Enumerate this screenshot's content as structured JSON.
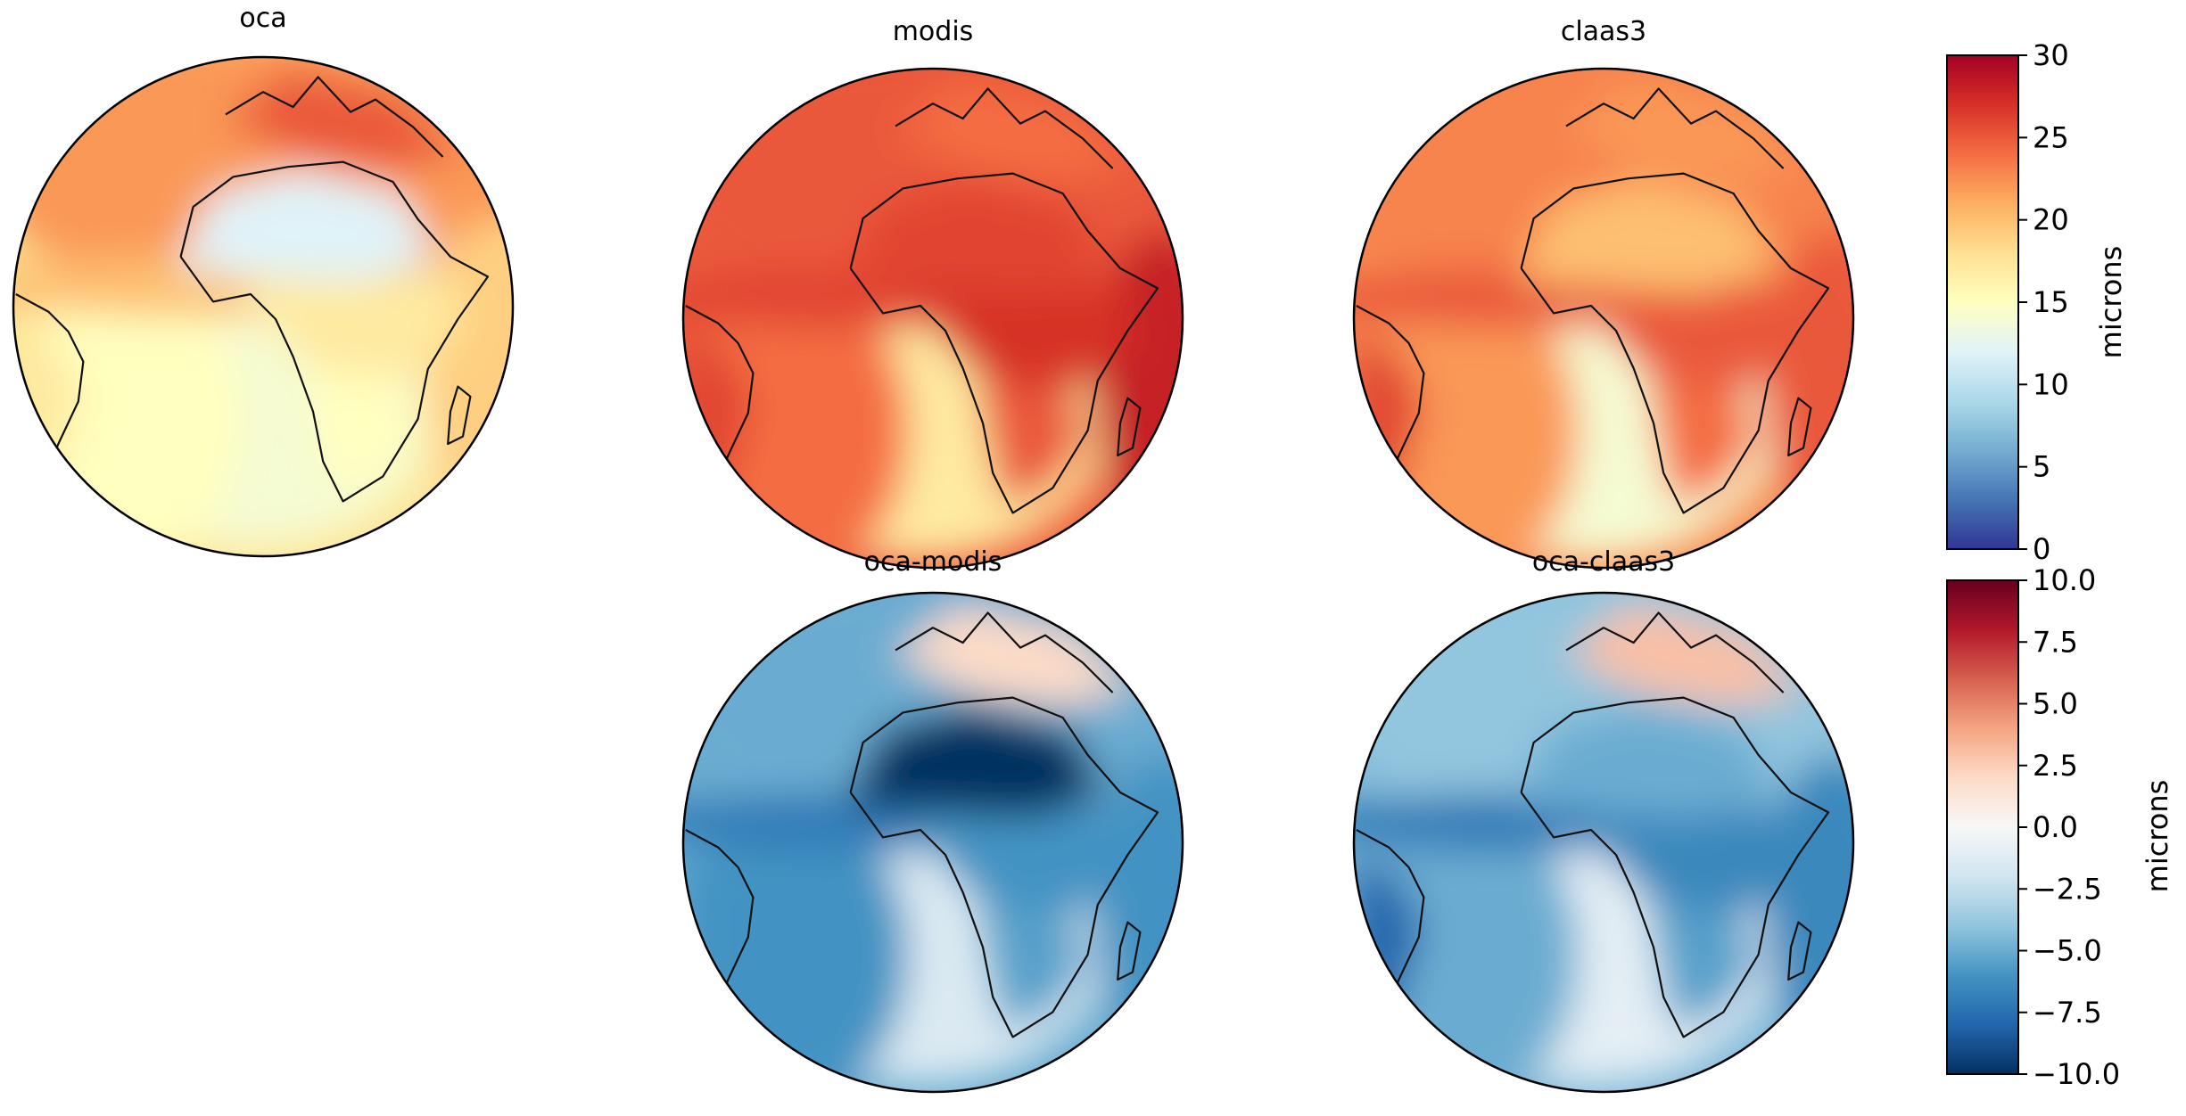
{
  "chart_data": [
    {
      "type": "map",
      "title": "oca",
      "projection": "orthographic",
      "colormap": "RdYlBu_r",
      "colorbar": "microns-abs",
      "regions": {
        "ocean_north": 22,
        "ocean_equatorial_band": 20,
        "ocean_south_atlantic": 14,
        "ocean_southwest": 15,
        "sahara": 12,
        "central_africa": 17,
        "southern_africa": 15,
        "mediterranean_europe": 25,
        "east_indian_ocean": 19,
        "south_america": 17
      }
    },
    {
      "type": "map",
      "title": "modis",
      "projection": "orthographic",
      "colormap": "RdYlBu_r",
      "colorbar": "microns-abs",
      "regions": {
        "ocean_north": 25,
        "ocean_equatorial_band": 26,
        "ocean_south_atlantic": 17,
        "ocean_southwest": 24,
        "sahara": 26,
        "central_africa": 27,
        "southern_africa": 25,
        "mediterranean_europe": 24,
        "east_indian_ocean": 28,
        "south_america": 26
      }
    },
    {
      "type": "map",
      "title": "claas3",
      "projection": "orthographic",
      "colormap": "RdYlBu_r",
      "colorbar": "microns-abs",
      "regions": {
        "ocean_north": 23,
        "ocean_equatorial_band": 25,
        "ocean_south_atlantic": 14,
        "ocean_southwest": 22,
        "sahara": 20,
        "central_africa": 25,
        "southern_africa": 24,
        "mediterranean_europe": 22,
        "east_indian_ocean": 25,
        "south_america": 26
      }
    },
    {
      "type": "map",
      "title": "oca-modis",
      "projection": "orthographic",
      "colormap": "RdBu_r",
      "colorbar": "microns-diff",
      "regions": {
        "ocean_north": -5,
        "ocean_equatorial_band": -7,
        "ocean_south_atlantic": -1.5,
        "ocean_southwest": -6,
        "sahara": -10,
        "central_africa": -6,
        "southern_africa": -5.5,
        "mediterranean_europe": 2,
        "east_indian_ocean": -6,
        "south_america": -6
      }
    },
    {
      "type": "map",
      "title": "oca-claas3",
      "projection": "orthographic",
      "colormap": "RdBu_r",
      "colorbar": "microns-diff",
      "regions": {
        "ocean_north": -4,
        "ocean_equatorial_band": -7,
        "ocean_south_atlantic": -1,
        "ocean_southwest": -5,
        "sahara": -5,
        "central_africa": -6.5,
        "southern_africa": -5.5,
        "mediterranean_europe": 3,
        "east_indian_ocean": -6.5,
        "south_america": -8
      }
    }
  ],
  "colorbars": [
    {
      "id": "microns-abs",
      "label": "microns",
      "colormap": "RdYlBu_r",
      "range": [
        0,
        30
      ],
      "ticks": [
        0,
        5,
        10,
        15,
        20,
        25,
        30
      ],
      "tick_labels": [
        "0",
        "5",
        "10",
        "15",
        "20",
        "25",
        "30"
      ]
    },
    {
      "id": "microns-diff",
      "label": "microns",
      "colormap": "RdBu_r",
      "range": [
        -10,
        10
      ],
      "ticks": [
        -10,
        -7.5,
        -5,
        -2.5,
        0,
        2.5,
        5,
        7.5,
        10
      ],
      "tick_labels": [
        "−10.0",
        "−7.5",
        "−5.0",
        "−2.5",
        "0.0",
        "2.5",
        "5.0",
        "7.5",
        "10.0"
      ]
    }
  ]
}
